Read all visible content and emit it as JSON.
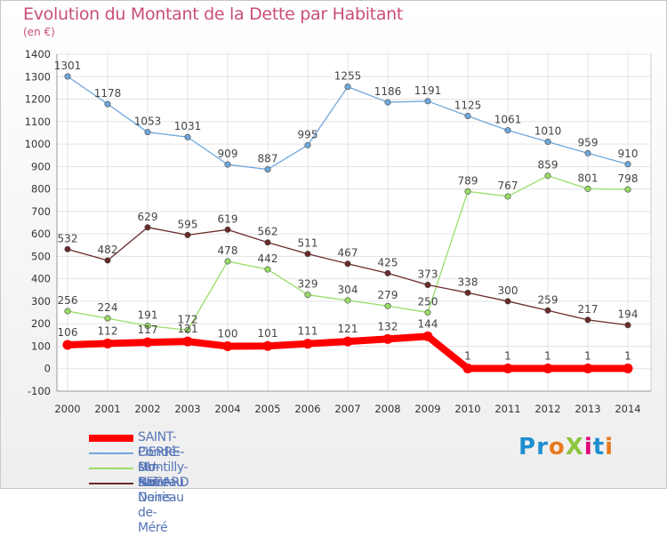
{
  "title": "Evolution du Montant de la Dette par Habitant",
  "subtitle": "(en €)",
  "logo": {
    "text": "ProXiti",
    "letters": [
      {
        "ch": "P",
        "color": "#1e8fcf"
      },
      {
        "ch": "r",
        "color": "#1e8fcf"
      },
      {
        "ch": "o",
        "color": "#e87a1e"
      },
      {
        "ch": "X",
        "color": "#8cc63f"
      },
      {
        "ch": "i",
        "color": "#e2007a"
      },
      {
        "ch": "t",
        "color": "#1e8fcf"
      },
      {
        "ch": "i",
        "color": "#e87a1e"
      }
    ]
  },
  "chart_data": {
    "type": "line",
    "title": "Evolution du Montant de la Dette par Habitant",
    "subtitle": "(en €)",
    "x": [
      "2000",
      "2001",
      "2002",
      "2003",
      "2004",
      "2005",
      "2006",
      "2007",
      "2008",
      "2009",
      "2010",
      "2011",
      "2012",
      "2013",
      "2014"
    ],
    "ylim": [
      -100,
      1400
    ],
    "yticks": [
      "-100",
      "0",
      "100",
      "200",
      "300",
      "400",
      "500",
      "600",
      "700",
      "800",
      "900",
      "1000",
      "1100",
      "1200",
      "1300",
      "1400"
    ],
    "grid": true,
    "legend_position": "bottom-left",
    "series": [
      {
        "name": "SAINT-PIERRE-DU-REGARD",
        "color": "#ff0000",
        "values": [
          106,
          112,
          117,
          121,
          100,
          101,
          111,
          121,
          132,
          144,
          1,
          1,
          1,
          1,
          1
        ],
        "labels": [
          "106",
          "112",
          "117",
          "121",
          "100",
          "101",
          "111",
          "121",
          "132",
          "144",
          "1",
          "1",
          "1",
          "1",
          "1"
        ]
      },
      {
        "name": "Condé-sur-Noireau",
        "color": "#6fa8dc",
        "values": [
          1301,
          1178,
          1053,
          1031,
          909,
          887,
          995,
          1255,
          1186,
          1191,
          1125,
          1061,
          1010,
          959,
          910
        ],
        "labels": [
          "1301",
          "1178",
          "1053",
          "1031",
          "909",
          "887",
          "995",
          "1255",
          "1186",
          "1191",
          "1125",
          "1061",
          "1010",
          "959",
          "910"
        ]
      },
      {
        "name": "Montilly-sur-Noireau",
        "color": "#99dd66",
        "values": [
          256,
          224,
          191,
          172,
          478,
          442,
          329,
          304,
          279,
          250,
          789,
          767,
          859,
          801,
          798
        ],
        "labels": [
          "256",
          "224",
          "191",
          "172",
          "478",
          "442",
          "329",
          "304",
          "279",
          "250",
          "789",
          "767",
          "859",
          "801",
          "798"
        ]
      },
      {
        "name": "Saint-Denis-de-Méré",
        "color": "#6b2a2a",
        "values": [
          532,
          482,
          629,
          595,
          619,
          562,
          511,
          467,
          425,
          373,
          338,
          300,
          259,
          217,
          194
        ],
        "labels": [
          "532",
          "482",
          "629",
          "595",
          "619",
          "562",
          "511",
          "467",
          "425",
          "373",
          "338",
          "300",
          "259",
          "217",
          "194"
        ]
      }
    ]
  }
}
